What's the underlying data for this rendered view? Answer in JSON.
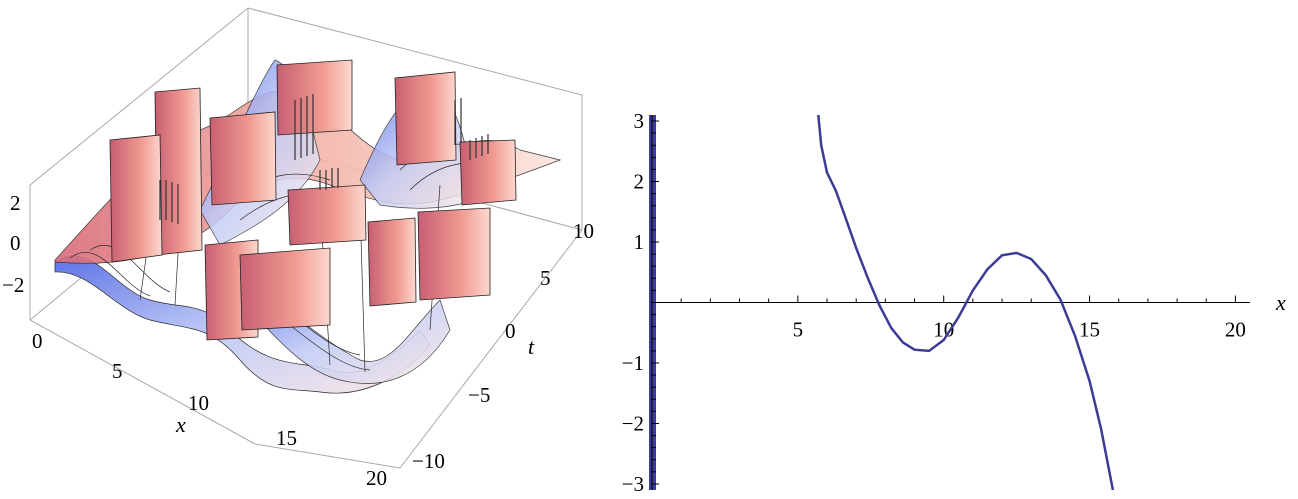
{
  "chart_data": [
    {
      "type": "surface3d",
      "panel": "left",
      "xlabel": "x",
      "ylabel": "t",
      "zlabel": "",
      "xlim": [
        0,
        20
      ],
      "ylim": [
        -10,
        10
      ],
      "zlim": [
        -3,
        3
      ],
      "x_ticks": [
        "0",
        "5",
        "10",
        "15",
        "20"
      ],
      "t_ticks": [
        "−10",
        "−5",
        "0",
        "5",
        "10"
      ],
      "z_ticks": [
        "2",
        "0",
        "−2"
      ],
      "colors": {
        "box": "#aaaaaa",
        "mesh": "#222222",
        "warm": "#e07a7a",
        "pale": "#fde7e2",
        "cool": "#5a6fe0"
      },
      "description_series": "periodic tan-like surface with vertical jumps at singularities, cut off at |z|=3"
    },
    {
      "type": "line",
      "panel": "right",
      "xlabel": "x",
      "ylabel": "",
      "xlim": [
        0,
        20.5
      ],
      "ylim": [
        -3.1,
        3.1
      ],
      "x_ticks": [
        "5",
        "10",
        "15",
        "20"
      ],
      "y_ticks": [
        "3",
        "2",
        "1",
        "−1",
        "−2",
        "−3"
      ],
      "line_color": "#3c3c96",
      "series": [
        {
          "x": [
            5.7,
            5.8,
            6.0,
            6.3,
            6.6,
            7.0,
            7.4,
            7.8,
            8.2,
            8.6,
            9.0,
            9.5,
            10.0,
            10.5,
            11.0,
            11.5,
            12.0,
            12.5,
            13.0,
            13.5,
            14.0,
            14.5,
            15.0,
            15.4,
            15.8
          ],
          "y": [
            3.1,
            2.6,
            2.15,
            1.85,
            1.45,
            0.9,
            0.4,
            -0.05,
            -0.42,
            -0.66,
            -0.78,
            -0.8,
            -0.62,
            -0.25,
            0.2,
            0.55,
            0.78,
            0.82,
            0.72,
            0.45,
            0.05,
            -0.55,
            -1.3,
            -2.1,
            -3.1
          ]
        }
      ],
      "vertical_band": {
        "x": 0,
        "color": "#3c3c96"
      }
    }
  ]
}
